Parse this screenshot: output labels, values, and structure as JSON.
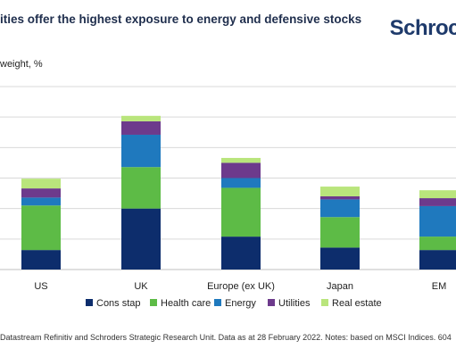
{
  "header": {
    "title": "ities offer the highest exposure to energy and defensive stocks",
    "logo_text": "Schroc"
  },
  "footnote": "Datastream Refinitiv and Schroders Strategic Research Unit. Data as at 28 February 2022. Notes: based on MSCI Indices. 604",
  "chart_data": {
    "type": "bar",
    "stacked": true,
    "ylabel": "weight, %",
    "ylim": [
      0,
      30
    ],
    "grid": true,
    "legend_position": "bottom",
    "categories": [
      "US",
      "UK",
      "Europe (ex UK)",
      "Japan",
      "EM"
    ],
    "series": [
      {
        "name": "Cons stap",
        "color": "#0d2d6c",
        "values": [
          3.2,
          10.0,
          5.4,
          3.6,
          3.2
        ]
      },
      {
        "name": "Health care",
        "color": "#5dbb46",
        "values": [
          7.3,
          6.8,
          8.0,
          5.0,
          2.2
        ]
      },
      {
        "name": "Energy",
        "color": "#1f79be",
        "values": [
          1.3,
          5.3,
          1.6,
          2.9,
          5.0
        ]
      },
      {
        "name": "Utilities",
        "color": "#6d3a8c",
        "values": [
          1.5,
          2.2,
          2.5,
          0.5,
          1.3
        ]
      },
      {
        "name": "Real estate",
        "color": "#b9e57c",
        "values": [
          1.6,
          0.9,
          0.8,
          1.6,
          1.3
        ]
      }
    ]
  }
}
